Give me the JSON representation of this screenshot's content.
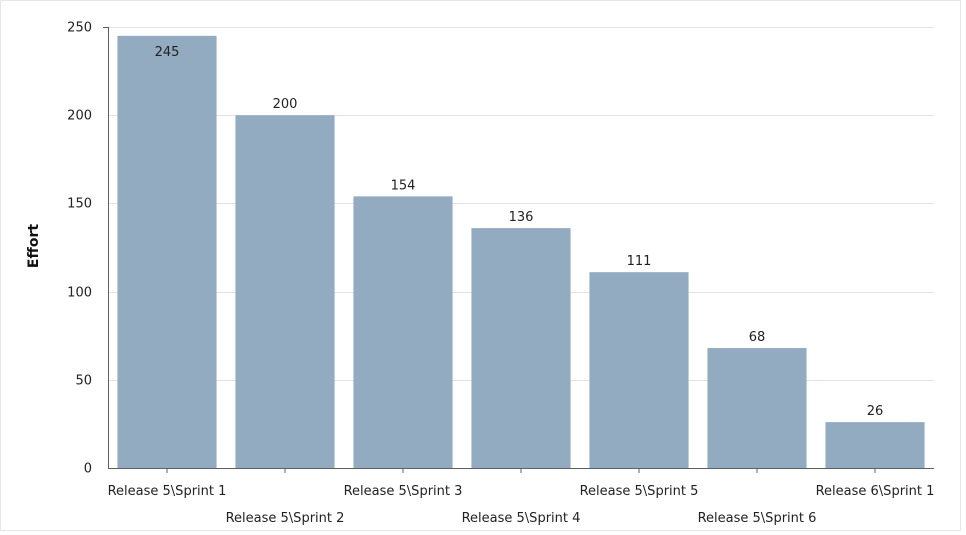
{
  "chart_data": {
    "type": "bar",
    "title": "",
    "xlabel": "",
    "ylabel": "Effort",
    "ylim": [
      0,
      250
    ],
    "yticks": [
      0,
      50,
      100,
      150,
      200,
      250
    ],
    "grid": true,
    "legend": "none",
    "categories": [
      "Release 5\\Sprint 1",
      "Release 5\\Sprint 2",
      "Release 5\\Sprint 3",
      "Release 5\\Sprint 4",
      "Release 5\\Sprint 5",
      "Release 5\\Sprint 6",
      "Release 6\\Sprint 1"
    ],
    "values": [
      245,
      200,
      154,
      136,
      111,
      68,
      26
    ],
    "bar_color": "#93abc0"
  }
}
